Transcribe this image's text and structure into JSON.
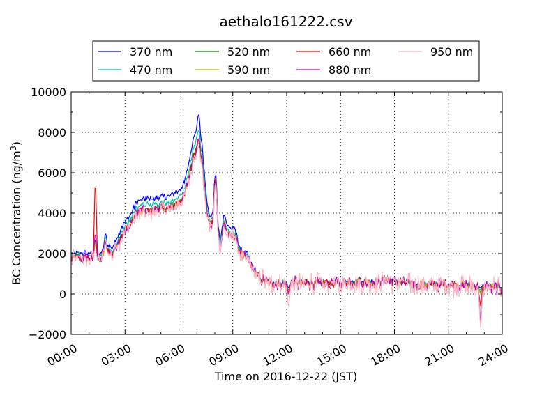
{
  "chart_data": {
    "type": "line",
    "title": "aethalo161222.csv",
    "xlabel": "Time on 2016-12-22 (JST)",
    "ylabel": "BC Concentration (ng/m",
    "ylabel_sup": "3",
    "ylabel_end": ")",
    "xlim": [
      0,
      24
    ],
    "ylim": [
      -2000,
      10000
    ],
    "x_ticks": [
      0,
      3,
      6,
      9,
      12,
      15,
      18,
      21,
      24
    ],
    "x_tick_labels": [
      "00:00",
      "03:00",
      "06:00",
      "09:00",
      "12:00",
      "15:00",
      "18:00",
      "21:00",
      "24:00"
    ],
    "y_ticks": [
      -2000,
      0,
      2000,
      4000,
      6000,
      8000,
      10000
    ],
    "y_tick_labels": [
      "−2000",
      "0",
      "2000",
      "4000",
      "6000",
      "8000",
      "10000"
    ],
    "grid": true,
    "legend_position": "top",
    "series": [
      {
        "name": "370 nm",
        "color": "#0000ff",
        "scale": 1.12,
        "noise": 150
      },
      {
        "name": "470 nm",
        "color": "#00c0a8",
        "scale": 1.05,
        "noise": 160
      },
      {
        "name": "520 nm",
        "color": "#008000",
        "scale": 1.0,
        "noise": 170
      },
      {
        "name": "590 nm",
        "color": "#b8b800",
        "scale": 0.97,
        "noise": 180
      },
      {
        "name": "660 nm",
        "color": "#ff0000",
        "scale": 0.99,
        "noise": 200
      },
      {
        "name": "880 nm",
        "color": "#c000c0",
        "scale": 0.98,
        "noise": 260
      },
      {
        "name": "950 nm",
        "color": "#ffb6c1",
        "scale": 0.96,
        "noise": 420
      }
    ],
    "base_profile": {
      "x": [
        0,
        0.5,
        1.0,
        1.3,
        1.6,
        1.8,
        1.9,
        2.0,
        2.3,
        2.5,
        2.8,
        3.0,
        3.3,
        3.6,
        4.0,
        4.5,
        5.0,
        5.5,
        6.0,
        6.3,
        6.6,
        6.8,
        7.0,
        7.15,
        7.3,
        7.5,
        7.7,
        7.9,
        8.0,
        8.1,
        8.3,
        8.5,
        8.7,
        8.9,
        9.1,
        9.3,
        9.5,
        9.8,
        10.0,
        10.3,
        10.6,
        11.0,
        12.0,
        13.0,
        14.0,
        15.0,
        16.0,
        17.0,
        17.5,
        18.0,
        19.0,
        20.0,
        21.0,
        22.0,
        23.0,
        24.0
      ],
      "y": [
        1800,
        1800,
        1800,
        1700,
        1700,
        2000,
        2700,
        2200,
        2000,
        2400,
        2900,
        3200,
        3500,
        4000,
        4200,
        4200,
        4300,
        4300,
        4600,
        4900,
        6000,
        6900,
        7400,
        7200,
        6500,
        4500,
        3400,
        3600,
        5000,
        3500,
        2300,
        3500,
        3100,
        2800,
        3000,
        2300,
        1900,
        1800,
        1400,
        1000,
        700,
        550,
        500,
        550,
        500,
        550,
        600,
        550,
        700,
        600,
        500,
        450,
        450,
        400,
        350,
        300
      ]
    },
    "events": [
      {
        "x": 1.35,
        "values": [
          2700,
          2600,
          2500,
          2500,
          5500,
          3000,
          2200
        ]
      },
      {
        "x": 7.1,
        "values": [
          8900,
          8100,
          7700,
          7500,
          7600,
          7700,
          7300
        ]
      },
      {
        "x": 8.05,
        "values": [
          5900,
          5600,
          5500,
          5400,
          5700,
          5600,
          5500
        ]
      },
      {
        "x": 12.1,
        "values": [
          300,
          200,
          150,
          150,
          100,
          0,
          -600
        ]
      },
      {
        "x": 22.8,
        "values": [
          300,
          200,
          100,
          0,
          -600,
          -1400,
          -1700
        ]
      }
    ]
  }
}
